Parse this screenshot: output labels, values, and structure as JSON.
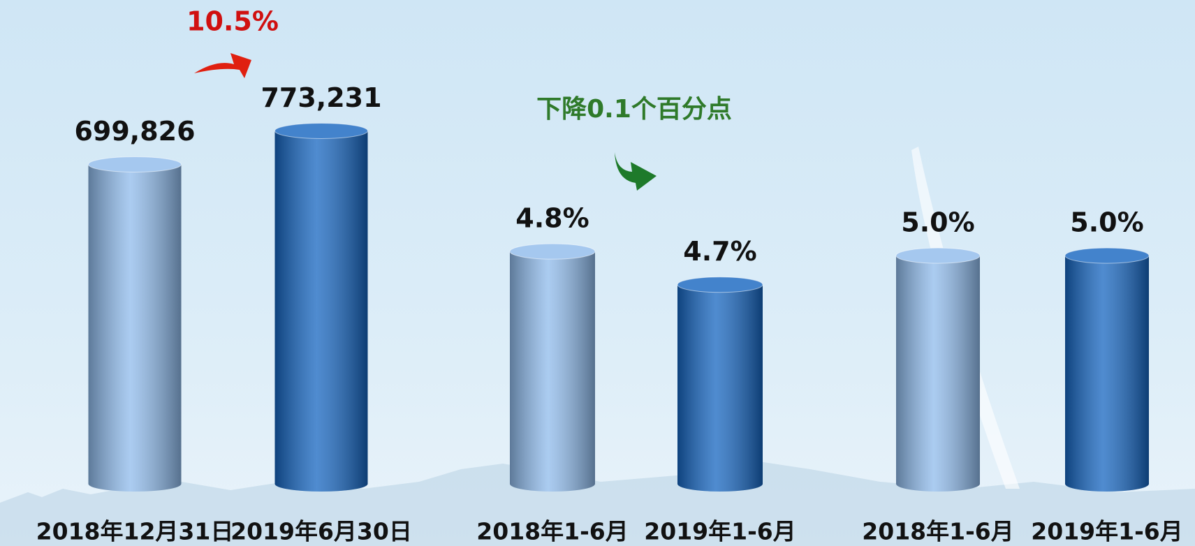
{
  "chart_data": [
    {
      "type": "bar",
      "categories": [
        "2018年12月31日",
        "2019年6月30日"
      ],
      "values": [
        699826,
        773231
      ],
      "value_labels": [
        "699,826",
        "773,231"
      ],
      "colors": [
        "#8fbbec",
        "#1565c0"
      ],
      "ylim": [
        0,
        800000
      ],
      "annotation": "10.5%",
      "annotation_color": "#d01010"
    },
    {
      "type": "bar",
      "categories": [
        "2018年1-6月",
        "2019年1-6月"
      ],
      "values": [
        4.8,
        4.7
      ],
      "value_labels": [
        "4.8%",
        "4.7%"
      ],
      "colors": [
        "#8fbbec",
        "#1565c0"
      ],
      "ylim": [
        4.1,
        5.2
      ],
      "annotation": "下降0.1个百分点",
      "annotation_color": "#2f7a2a"
    },
    {
      "type": "bar",
      "categories": [
        "2018年1-6月",
        "2019年1-6月"
      ],
      "values": [
        5.0,
        5.0
      ],
      "value_labels": [
        "5.0%",
        "5.0%"
      ],
      "colors": [
        "#8fbbec",
        "#1565c0"
      ],
      "ylim": [
        0,
        8
      ]
    }
  ]
}
